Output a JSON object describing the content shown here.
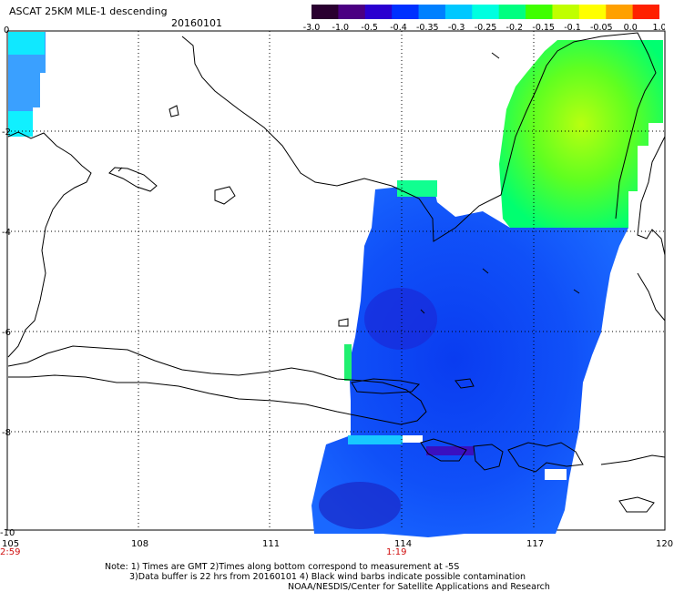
{
  "header": {
    "title": "ASCAT 25KM MLE-1 descending",
    "date": "20160101"
  },
  "colorbar": {
    "labels": [
      "-3.0",
      "-1.0",
      "-0.5",
      "-0.4",
      "-0.35",
      "-0.3",
      "-0.25",
      "-0.2",
      "-0.15",
      "-0.1",
      "-0.05",
      "0.0",
      "1.0"
    ],
    "colors": [
      "#2a0030",
      "#4b0082",
      "#2a00d0",
      "#0030ff",
      "#0080ff",
      "#00c8ff",
      "#00ffe0",
      "#00ff80",
      "#40ff00",
      "#c0ff00",
      "#ffff00",
      "#ffa000",
      "#ff2000"
    ]
  },
  "axes": {
    "x_ticks": [
      "105",
      "108",
      "111",
      "114",
      "117",
      "120"
    ],
    "y_ticks": [
      "0",
      "-2",
      "-4",
      "-6",
      "-8",
      "-10"
    ],
    "time_labels": [
      "2:59",
      "1:19"
    ]
  },
  "notes": {
    "line1": "Note: 1) Times are GMT 2)Times along bottom correspond to measurement at -5S",
    "line2": "3)Data buffer is 22 hrs from 20160101 4) Black wind barbs indicate possible contamination",
    "line3": "NOAA/NESDIS/Center for Satellite Applications and Research"
  }
}
